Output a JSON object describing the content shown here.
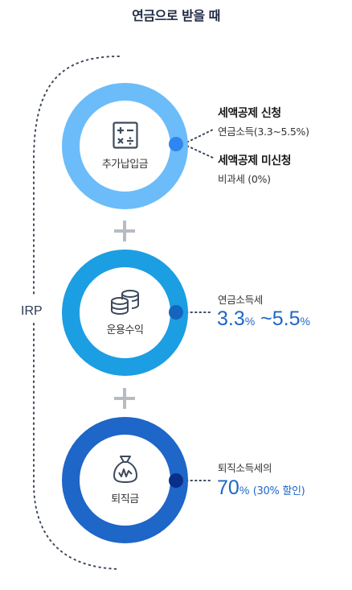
{
  "title": "연금으로 받을 때",
  "irp_label": "IRP",
  "steps": [
    {
      "label": "추가납입금",
      "icon": "calculator-icon",
      "deduction_label": "세액공제 신청",
      "deduction_tax": "연금소득(3.3~5.5%)",
      "no_deduction_label": "세액공제 미신청",
      "no_deduction_tax": "비과세 (0%)"
    },
    {
      "label": "운용수익",
      "icon": "coins-icon",
      "tax_label": "연금소득세",
      "rate_min": "3.3",
      "rate_min_unit": "%",
      "rate_sep": " ~",
      "rate_max": "5.5",
      "rate_max_unit": "%"
    },
    {
      "label": "퇴직금",
      "icon": "money-bag-icon",
      "tax_label": "퇴직소득세의",
      "rate": "70",
      "rate_unit": "%",
      "discount": "(30% 할인)"
    }
  ],
  "colors": {
    "ring1": "#6cbcfa",
    "ring2": "#1c9ee2",
    "ring3": "#1e66c7",
    "accent_text": "#1e66c7"
  }
}
